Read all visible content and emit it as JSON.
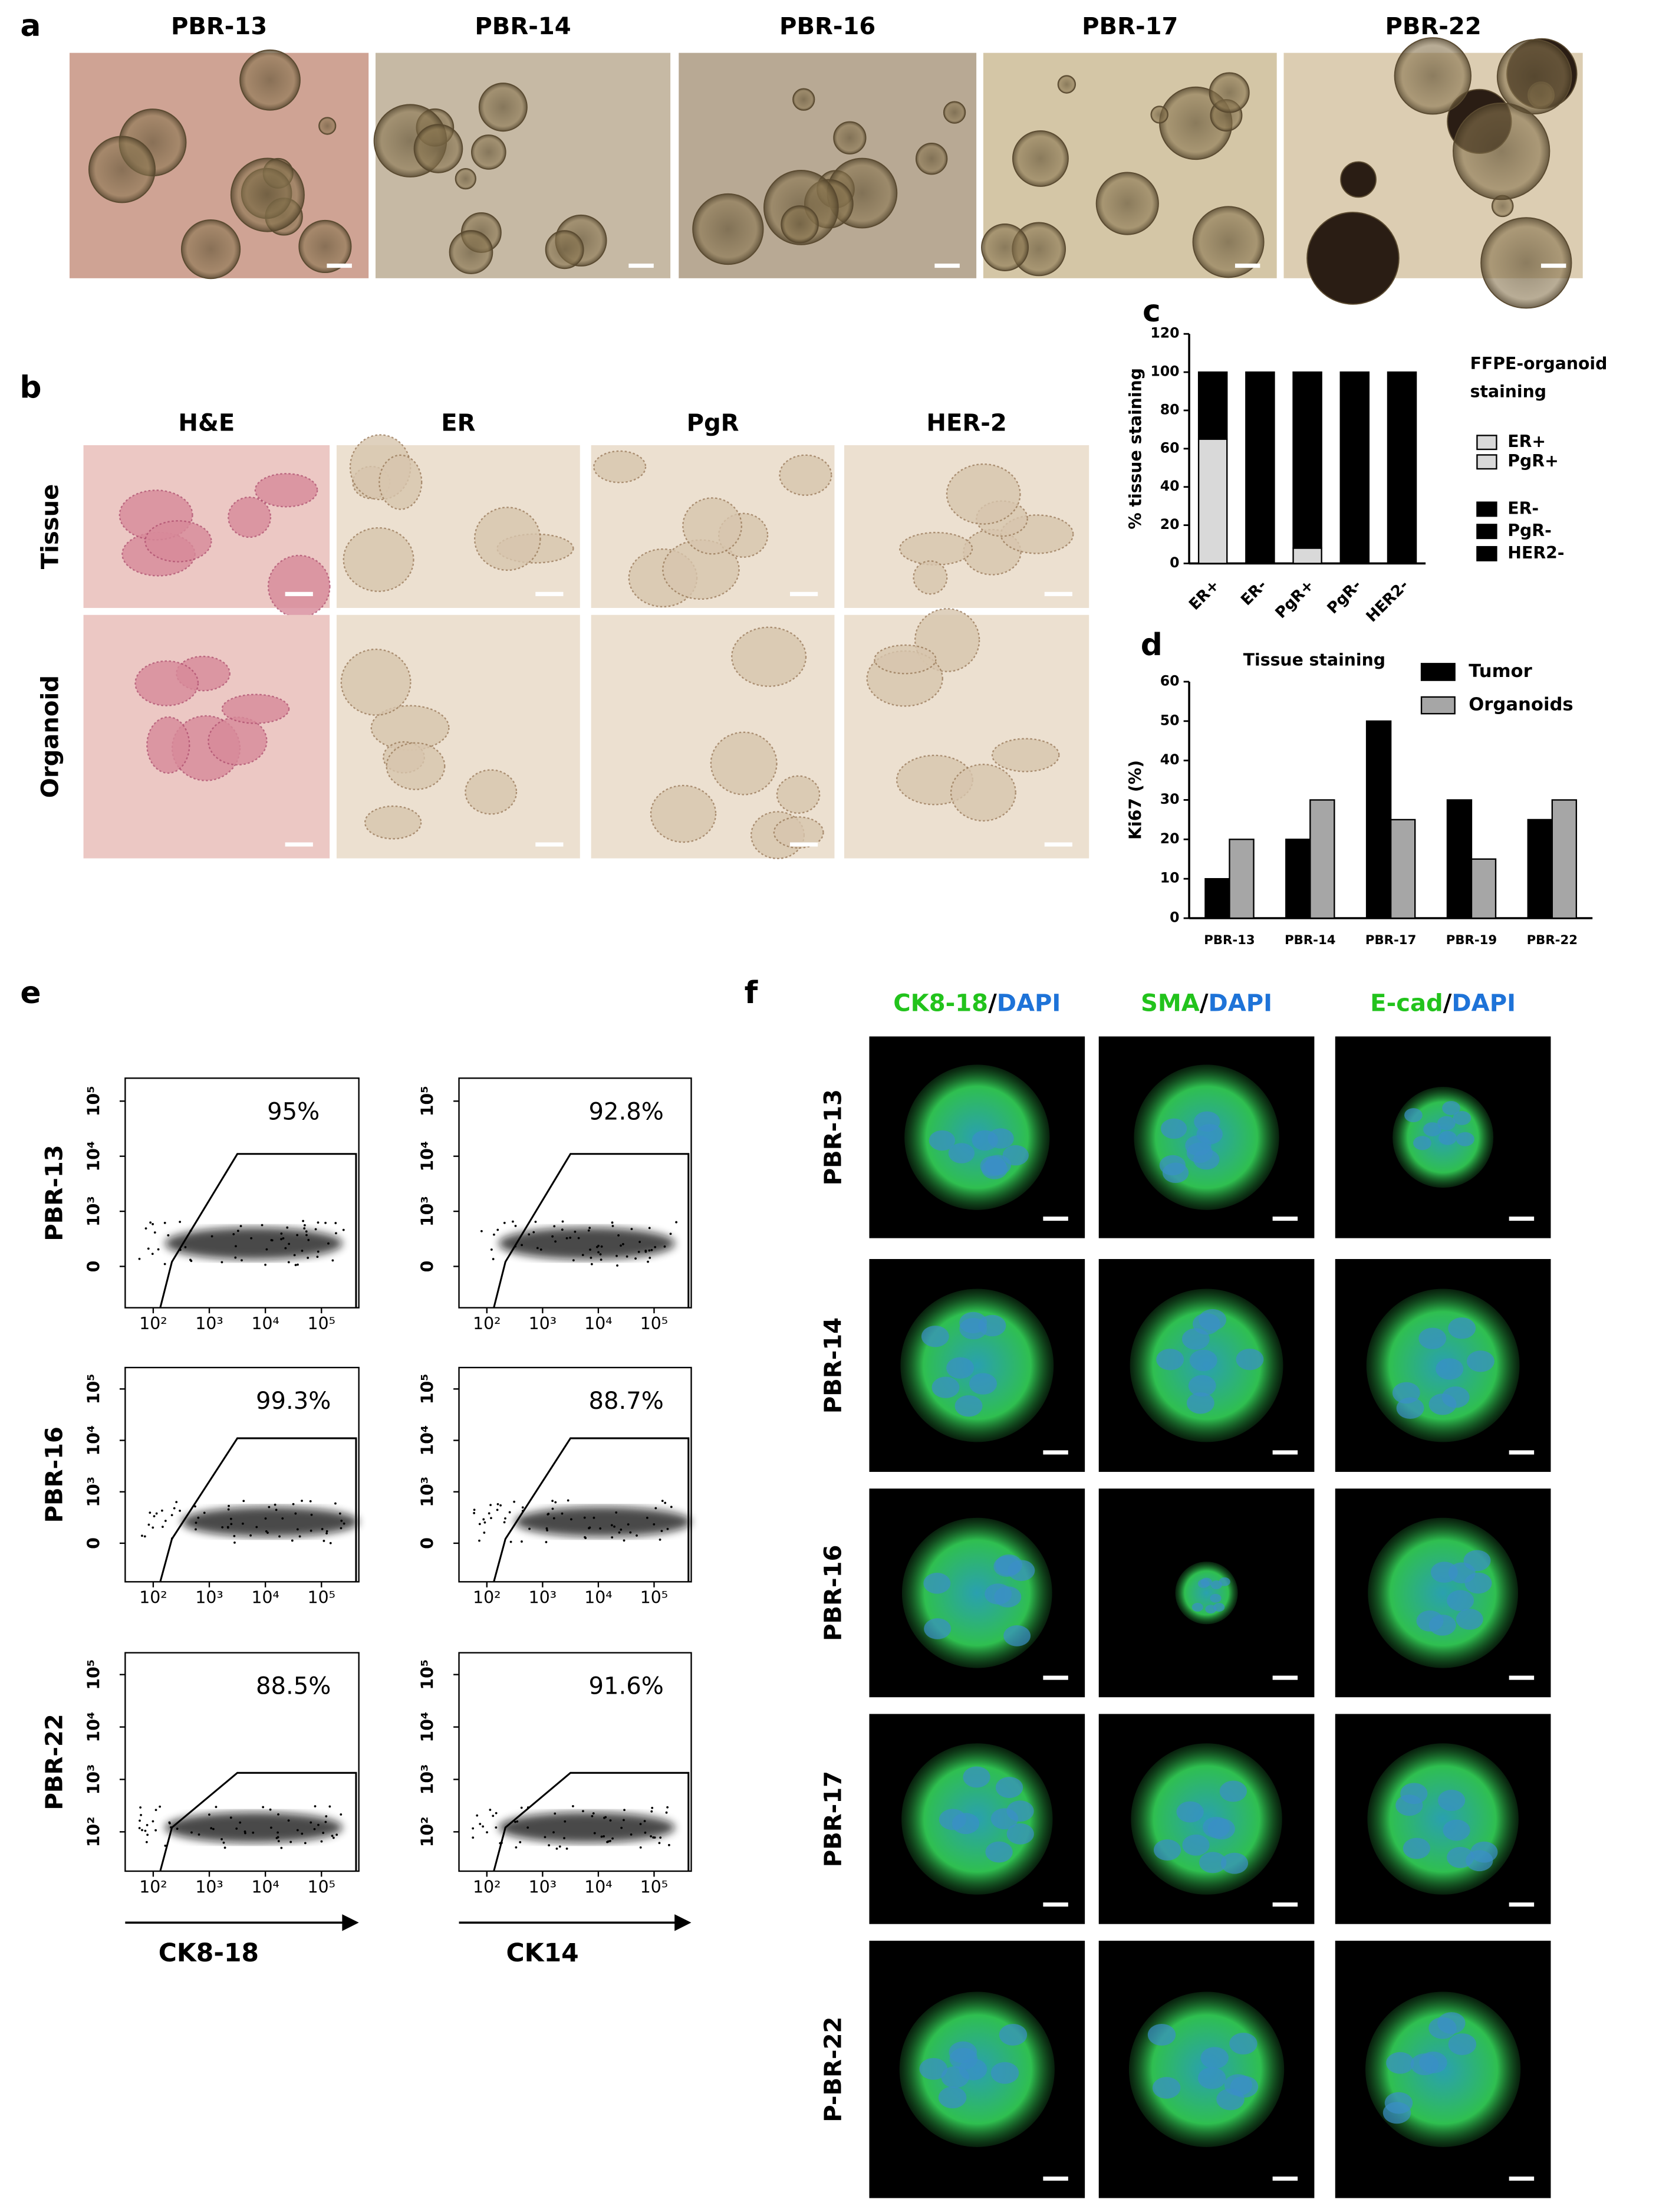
{
  "panel_labels": [
    "a",
    "b",
    "c",
    "d",
    "e",
    "f"
  ],
  "a": {
    "samples": [
      "PBR-13",
      "PBR-14",
      "PBR-16",
      "PBR-17",
      "PBR-22"
    ]
  },
  "b": {
    "columns": [
      "H&E",
      "ER",
      "PgR",
      "HER-2"
    ],
    "rows": [
      "Tissue",
      "Organoid"
    ]
  },
  "e": {
    "rows": [
      {
        "sample": "PBR-13",
        "percents": [
          "95%",
          "92.8%"
        ]
      },
      {
        "sample": "PBR-16",
        "percents": [
          "99.3%",
          "88.7%"
        ]
      },
      {
        "sample": "PBR-22",
        "percents": [
          "88.5%",
          "91.6%"
        ]
      }
    ],
    "x_ticks": [
      "10²",
      "10³",
      "10⁴",
      "10⁵"
    ],
    "y_ticks": [
      "0",
      "10³",
      "10⁴",
      "10⁵"
    ],
    "y_ticks_low": [
      "10²",
      "10³",
      "10⁴",
      "10⁵"
    ],
    "x_labels": [
      "CK8-18",
      "CK14"
    ]
  },
  "f": {
    "columns": [
      {
        "marker": "CK8-18",
        "sep": "/",
        "counterstain": "DAPI"
      },
      {
        "marker": "SMA",
        "sep": "/",
        "counterstain": "DAPI"
      },
      {
        "marker": "E-cad",
        "sep": "/",
        "counterstain": "DAPI"
      }
    ],
    "rows": [
      "PBR-13",
      "PBR-14",
      "PBR-16",
      "PBR-17",
      "P-BR-22"
    ]
  },
  "chart_data": [
    {
      "type": "bar",
      "stacked": true,
      "categories": [
        "ER+",
        "ER-",
        "PgR+",
        "PgR-",
        "HER2-"
      ],
      "series": [
        {
          "color": "#d9d9d9",
          "values": [
            65,
            0,
            8,
            0,
            0
          ]
        },
        {
          "color": "#000000",
          "values": [
            35,
            100,
            92,
            100,
            100
          ]
        }
      ],
      "ylabel": "% tissue staining",
      "ylim": [
        0,
        120
      ],
      "yticks": [
        0,
        20,
        40,
        60,
        80,
        100,
        120
      ],
      "legend": {
        "title": [
          "FFPE-organoid",
          "staining"
        ],
        "entries": [
          {
            "label": "ER+",
            "color": "#d9d9d9"
          },
          {
            "label": "PgR+",
            "color": "#d9d9d9"
          },
          {
            "label": "ER-",
            "color": "#000000"
          },
          {
            "label": "PgR-",
            "color": "#000000"
          },
          {
            "label": "HER2-",
            "color": "#000000"
          }
        ]
      }
    },
    {
      "type": "bar",
      "stacked": false,
      "title": "Tissue staining",
      "categories": [
        "PBR-13",
        "PBR-14",
        "PBR-17",
        "PBR-19",
        "PBR-22"
      ],
      "series": [
        {
          "name": "Tumor",
          "color": "#000000",
          "values": [
            10,
            20,
            50,
            30,
            25
          ]
        },
        {
          "name": "Organoids",
          "color": "#a6a6a6",
          "values": [
            20,
            30,
            25,
            15,
            30
          ]
        }
      ],
      "ylabel": "Ki67 (%)",
      "ylim": [
        0,
        60
      ],
      "yticks": [
        0,
        10,
        20,
        30,
        40,
        50,
        60
      ],
      "legend": "upper right"
    }
  ]
}
